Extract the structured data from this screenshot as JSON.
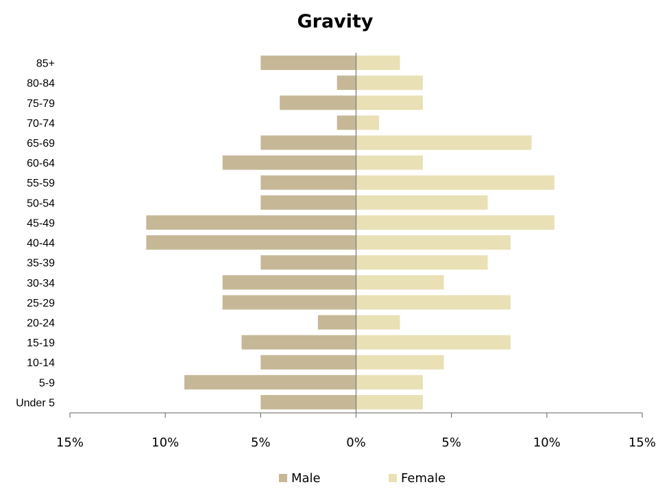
{
  "chart_data": {
    "type": "bar",
    "orientation": "horizontal",
    "title": "Gravity",
    "categories": [
      "85+",
      "80-84",
      "75-79",
      "70-74",
      "65-69",
      "60-64",
      "55-59",
      "50-54",
      "45-49",
      "40-44",
      "35-39",
      "30-34",
      "25-29",
      "20-24",
      "15-19",
      "10-14",
      "5-9",
      "Under 5"
    ],
    "series": [
      {
        "name": "Male",
        "color": "#c6b897",
        "values": [
          -5,
          -1,
          -4,
          -1,
          -5,
          -7,
          -5,
          -5,
          -11,
          -11,
          -5,
          -7,
          -7,
          -2,
          -6,
          -5,
          -9,
          -5
        ]
      },
      {
        "name": "Female",
        "color": "#e9e0b6",
        "values": [
          2.3,
          3.5,
          3.5,
          1.2,
          9.2,
          3.5,
          10.4,
          6.9,
          10.4,
          8.1,
          6.9,
          4.6,
          8.1,
          2.3,
          8.1,
          4.6,
          3.5,
          3.5
        ]
      }
    ],
    "xlim": [
      -15,
      15
    ],
    "xticks": [
      -15,
      -10,
      -5,
      0,
      5,
      10,
      15
    ],
    "xtick_labels": [
      "15%",
      "10%",
      "5%",
      "0%",
      "5%",
      "10%",
      "15%"
    ],
    "xlabel": "",
    "ylabel": "",
    "grid": false,
    "legend_position": "bottom"
  }
}
